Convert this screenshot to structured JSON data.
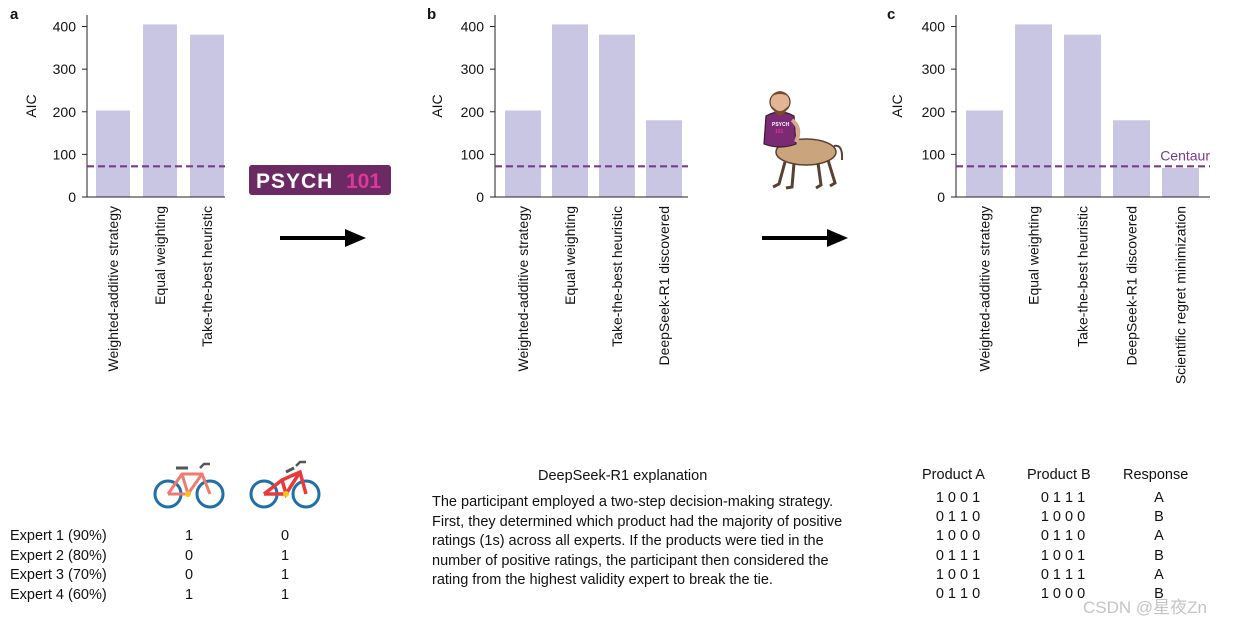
{
  "panels": {
    "a": {
      "label": "a"
    },
    "b": {
      "label": "b"
    },
    "c": {
      "label": "c"
    }
  },
  "chart_data": [
    {
      "type": "bar",
      "panel": "a",
      "categories": [
        "Weighted-additive strategy",
        "Equal weighting",
        "Take-the-best heuristic"
      ],
      "values": [
        203,
        405,
        381
      ],
      "ylabel": "AIC",
      "yticks": [
        0,
        100,
        200,
        300,
        400
      ],
      "ylim": [
        0,
        420
      ],
      "reference_line": {
        "value": 72,
        "label": ""
      },
      "bar_color": "#c8c6e2",
      "line_color": "#7b3a8c"
    },
    {
      "type": "bar",
      "panel": "b",
      "categories": [
        "Weighted-additive strategy",
        "Equal weighting",
        "Take-the-best heuristic",
        "DeepSeek-R1 discovered"
      ],
      "values": [
        203,
        405,
        381,
        180
      ],
      "ylabel": "AIC",
      "yticks": [
        0,
        100,
        200,
        300,
        400
      ],
      "ylim": [
        0,
        420
      ],
      "reference_line": {
        "value": 72,
        "label": ""
      },
      "bar_color": "#c8c6e2",
      "line_color": "#7b3a8c"
    },
    {
      "type": "bar",
      "panel": "c",
      "categories": [
        "Weighted-additive strategy",
        "Equal weighting",
        "Take-the-best heuristic",
        "DeepSeek-R1 discovered",
        "Scientific regret minimization"
      ],
      "values": [
        203,
        405,
        381,
        180,
        68
      ],
      "ylabel": "AIC",
      "yticks": [
        0,
        100,
        200,
        300,
        400
      ],
      "ylim": [
        0,
        420
      ],
      "reference_line": {
        "value": 72,
        "label": "Centaur"
      },
      "bar_color": "#c8c6e2",
      "line_color": "#7b3a8c"
    }
  ],
  "logo": {
    "text_left": "PSYCH",
    "text_right": "101",
    "bg": "#6b2a63",
    "accent": "#e0359a"
  },
  "experts": {
    "rows": [
      {
        "label": "Expert 1 (90%)",
        "a": "1",
        "b": "0"
      },
      {
        "label": "Expert 2 (80%)",
        "a": "0",
        "b": "1"
      },
      {
        "label": "Expert 3 (70%)",
        "a": "0",
        "b": "1"
      },
      {
        "label": "Expert 4 (60%)",
        "a": "1",
        "b": "1"
      }
    ],
    "icons": [
      "bike-a-icon",
      "bike-b-icon"
    ]
  },
  "explanation": {
    "title": "DeepSeek-R1 explanation",
    "body": "The participant employed a two-step decision-making strategy. First, they determined which product had the majority of positive ratings (1s) across all experts. If the products were tied in the number of positive ratings, the participant then considered the rating from the highest validity expert to break the tie."
  },
  "products": {
    "headers": [
      "Product A",
      "Product B",
      "Response"
    ],
    "rows": [
      [
        "1 0 0 1",
        "0 1 1 1",
        "A"
      ],
      [
        "0 1 1 0",
        "1 0 0 0",
        "B"
      ],
      [
        "1 0 0 0",
        "0 1 1 0",
        "A"
      ],
      [
        "0 1 1 1",
        "1 0 0 1",
        "B"
      ],
      [
        "1 0 0 1",
        "0 1 1 1",
        "A"
      ],
      [
        "0 1 1 0",
        "1 0 0 0",
        "B"
      ]
    ]
  },
  "watermark": "CSDN @星夜Zn"
}
